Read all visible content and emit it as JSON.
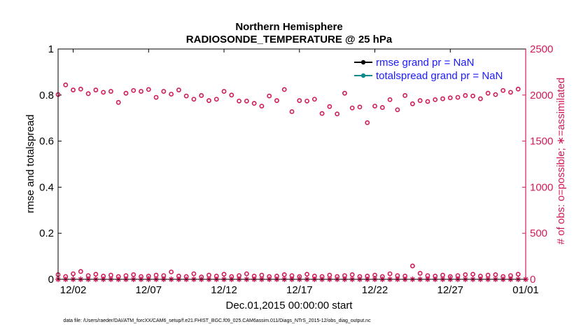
{
  "chart_data": {
    "type": "scatter",
    "title_line1": "Northern Hemisphere",
    "title_line2": "RADIOSONDE_TEMPERATURE @ 25 hPa",
    "xlabel": "Dec.01,2015 00:00:00 start",
    "ylabel_left": "rmse and totalspread",
    "ylabel_right": "# of obs: o=possible; ∗=assimilated",
    "ylim_left": [
      0,
      1
    ],
    "ylim_right": [
      0,
      2500
    ],
    "xlim_days": [
      0,
      31
    ],
    "yticks_left": [
      "0",
      "0.2",
      "0.4",
      "0.6",
      "0.8",
      "1"
    ],
    "yticks_left_values": [
      0,
      0.2,
      0.4,
      0.6,
      0.8,
      1
    ],
    "yticks_right": [
      "0",
      "500",
      "1000",
      "1500",
      "2000",
      "2500"
    ],
    "yticks_right_values": [
      0,
      500,
      1000,
      1500,
      2000,
      2500
    ],
    "xticks": [
      "12/02",
      "12/07",
      "12/12",
      "12/17",
      "12/22",
      "12/27",
      "01/01"
    ],
    "xticks_values": [
      1,
      6,
      11,
      16,
      21,
      26,
      31
    ],
    "legend": [
      {
        "label": "rmse grand pr = NaN",
        "color": "#000000"
      },
      {
        "label": "totalspread grand pr = NaN",
        "color": "#0f8b8d"
      }
    ],
    "series": [
      {
        "name": "possible (upper cluster)",
        "marker": "circle",
        "color": "#d11a5a",
        "x": [
          0,
          0.5,
          1,
          1.5,
          2,
          2.5,
          3,
          3.5,
          4,
          4.5,
          5,
          5.5,
          6,
          6.5,
          7,
          7.5,
          8,
          8.5,
          9,
          9.5,
          10,
          10.5,
          11,
          11.5,
          12,
          12.5,
          13,
          13.5,
          14,
          14.5,
          15,
          15.5,
          16,
          16.5,
          17,
          17.5,
          18,
          18.5,
          19,
          19.5,
          20,
          20.5,
          21,
          21.5,
          22,
          22.5,
          23,
          23.5,
          24,
          24.5,
          25,
          25.5,
          26,
          26.5,
          27,
          27.5,
          28,
          28.5,
          29,
          29.5,
          30,
          30.5
        ],
        "values": [
          2005,
          2110,
          2055,
          2065,
          2015,
          2055,
          2030,
          2040,
          1920,
          2020,
          2050,
          2040,
          2060,
          1975,
          2040,
          2010,
          2055,
          1990,
          1955,
          1995,
          1940,
          1955,
          2040,
          2000,
          1935,
          1935,
          1910,
          1880,
          1990,
          1940,
          2060,
          1820,
          1940,
          1935,
          1955,
          1800,
          1875,
          1795,
          2020,
          1860,
          1870,
          1700,
          1880,
          1865,
          1950,
          1840,
          1995,
          1905,
          1940,
          1930,
          1950,
          1960,
          1970,
          1975,
          1995,
          1990,
          1960,
          2020,
          2005,
          2050,
          2030,
          2065
        ]
      },
      {
        "name": "possible (lower cluster)",
        "marker": "circle",
        "color": "#d11a5a",
        "x": [
          0,
          0.5,
          1,
          1.5,
          2,
          2.5,
          3,
          3.5,
          4,
          4.5,
          5,
          5.5,
          6,
          6.5,
          7,
          7.5,
          8,
          8.5,
          9,
          9.5,
          10,
          10.5,
          11,
          11.5,
          12,
          12.5,
          13,
          13.5,
          14,
          14.5,
          15,
          15.5,
          16,
          16.5,
          17,
          17.5,
          18,
          18.5,
          19,
          19.5,
          20,
          20.5,
          21,
          21.5,
          22,
          22.5,
          23,
          23.5,
          24,
          24.5,
          25,
          25.5,
          26,
          26.5,
          27,
          27.5,
          28,
          28.5,
          29,
          29.5,
          30,
          30.5
        ],
        "values": [
          50,
          30,
          60,
          85,
          40,
          55,
          35,
          45,
          30,
          40,
          50,
          30,
          35,
          45,
          40,
          80,
          35,
          30,
          60,
          25,
          45,
          35,
          55,
          30,
          40,
          60,
          35,
          45,
          30,
          35,
          50,
          40,
          30,
          55,
          35,
          30,
          45,
          30,
          40,
          50,
          30,
          35,
          45,
          30,
          60,
          40,
          35,
          145,
          65,
          40,
          35,
          45,
          30,
          40,
          50,
          55,
          35,
          45,
          50,
          30,
          40,
          55
        ]
      },
      {
        "name": "assimilated",
        "marker": "star",
        "color": "#d11a5a",
        "x": [
          0,
          0.5,
          1,
          1.5,
          2,
          2.5,
          3,
          3.5,
          4,
          4.5,
          5,
          5.5,
          6,
          6.5,
          7,
          7.5,
          8,
          8.5,
          9,
          9.5,
          10,
          10.5,
          11,
          11.5,
          12,
          12.5,
          13,
          13.5,
          14,
          14.5,
          15,
          15.5,
          16,
          16.5,
          17,
          17.5,
          18,
          18.5,
          19,
          19.5,
          20,
          20.5,
          21,
          21.5,
          22,
          22.5,
          23,
          23.5,
          24,
          24.5,
          25,
          25.5,
          26,
          26.5,
          27,
          27.5,
          28,
          28.5,
          29,
          29.5,
          30,
          30.5,
          31
        ],
        "values": [
          0,
          0,
          0,
          0,
          0,
          0,
          0,
          0,
          0,
          0,
          0,
          0,
          0,
          0,
          0,
          0,
          0,
          0,
          0,
          0,
          0,
          0,
          0,
          0,
          0,
          0,
          0,
          0,
          0,
          0,
          0,
          0,
          0,
          0,
          0,
          0,
          0,
          0,
          0,
          0,
          0,
          0,
          0,
          0,
          0,
          0,
          0,
          0,
          0,
          0,
          0,
          0,
          0,
          0,
          0,
          0,
          0,
          0,
          0,
          0,
          0,
          0,
          0
        ]
      }
    ]
  },
  "footnote": "data file: /Users/raeder/DAI/ATM_forcXX/CAM6_setup/f.e21.FHIST_BGC.f09_025.CAM6assim.011/Diags_NTrS_2015-12/obs_diag_output.nc"
}
